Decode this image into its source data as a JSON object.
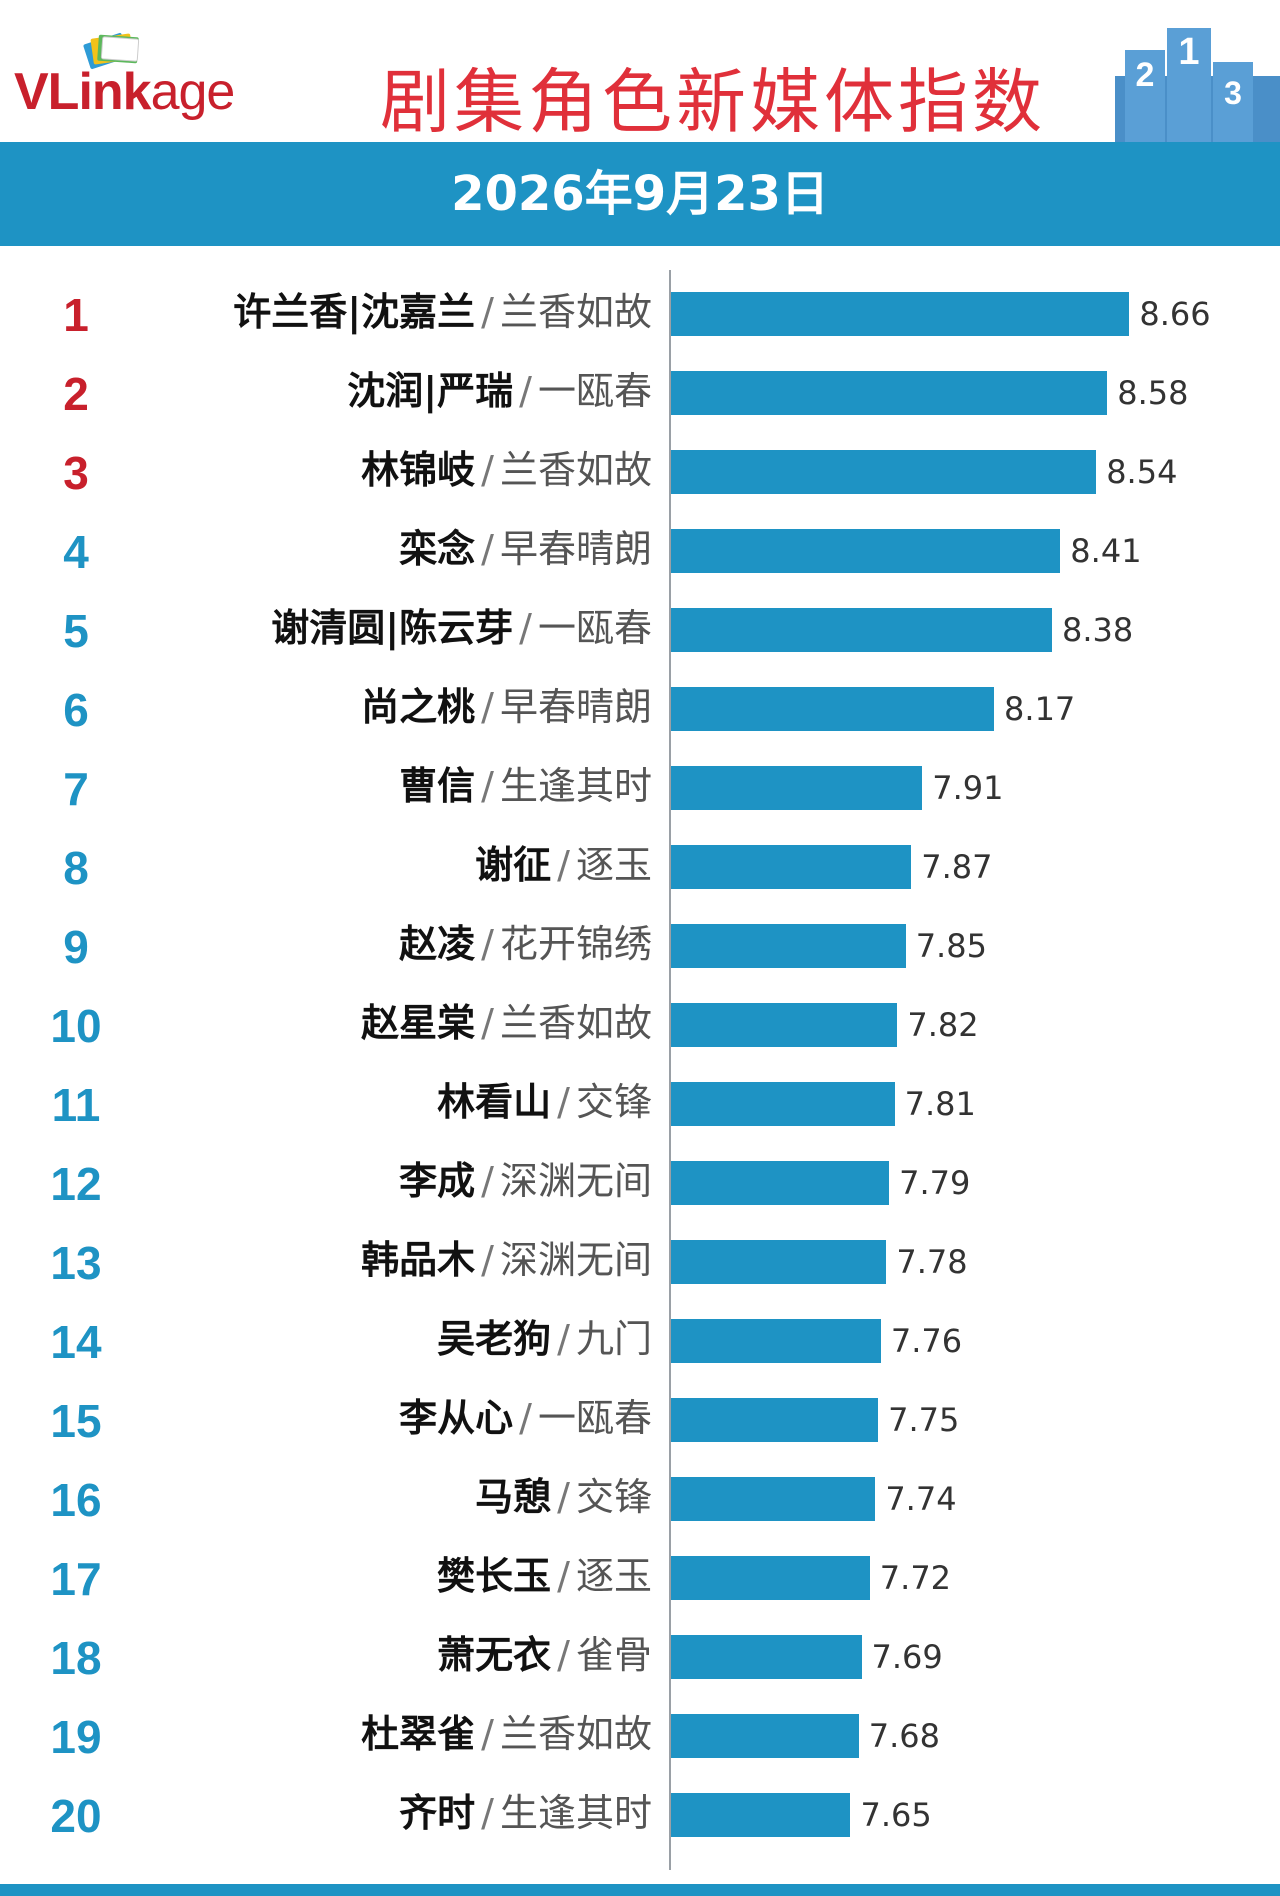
{
  "header": {
    "logo_text": {
      "part1": "VL",
      "part2": "ink",
      "part3": "age"
    },
    "title": "剧集角色新媒体指数",
    "podium": {
      "first": "1",
      "second": "2",
      "third": "3"
    }
  },
  "date": "2026年9月23日",
  "colors": {
    "bar": "#1e93c4",
    "rank_top3": "#c8202c",
    "rank_other": "#1e93c4",
    "title": "#e0303a"
  },
  "chart_data": {
    "type": "bar",
    "orientation": "horizontal",
    "title": "剧集角色新媒体指数",
    "subtitle": "2026年9月23日",
    "xlim": [
      7.0,
      9.0
    ],
    "rows": [
      {
        "rank": "1",
        "name": "许兰香|沈嘉兰",
        "drama": "兰香如故",
        "value": 8.66
      },
      {
        "rank": "2",
        "name": "沈润|严瑞",
        "drama": "一瓯春",
        "value": 8.58
      },
      {
        "rank": "3",
        "name": "林锦岐",
        "drama": "兰香如故",
        "value": 8.54
      },
      {
        "rank": "4",
        "name": "栾念",
        "drama": "早春晴朗",
        "value": 8.41
      },
      {
        "rank": "5",
        "name": "谢清圆|陈云芽",
        "drama": "一瓯春",
        "value": 8.38
      },
      {
        "rank": "6",
        "name": "尚之桃",
        "drama": "早春晴朗",
        "value": 8.17
      },
      {
        "rank": "7",
        "name": "曹信",
        "drama": "生逢其时",
        "value": 7.91
      },
      {
        "rank": "8",
        "name": "谢征",
        "drama": "逐玉",
        "value": 7.87
      },
      {
        "rank": "9",
        "name": "赵凌",
        "drama": "花开锦绣",
        "value": 7.85
      },
      {
        "rank": "10",
        "name": "赵星棠",
        "drama": "兰香如故",
        "value": 7.82
      },
      {
        "rank": "11",
        "name": "林看山",
        "drama": "交锋",
        "value": 7.81
      },
      {
        "rank": "12",
        "name": "李成",
        "drama": "深渊无间",
        "value": 7.79
      },
      {
        "rank": "13",
        "name": "韩品木",
        "drama": "深渊无间",
        "value": 7.78
      },
      {
        "rank": "14",
        "name": "吴老狗",
        "drama": "九门",
        "value": 7.76
      },
      {
        "rank": "15",
        "name": "李从心",
        "drama": "一瓯春",
        "value": 7.75
      },
      {
        "rank": "16",
        "name": "马憩",
        "drama": "交锋",
        "value": 7.74
      },
      {
        "rank": "17",
        "name": "樊长玉",
        "drama": "逐玉",
        "value": 7.72
      },
      {
        "rank": "18",
        "name": "萧无衣",
        "drama": "雀骨",
        "value": 7.69
      },
      {
        "rank": "19",
        "name": "杜翠雀",
        "drama": "兰香如故",
        "value": 7.68
      },
      {
        "rank": "20",
        "name": "齐时",
        "drama": "生逢其时",
        "value": 7.65
      }
    ],
    "separator": "/"
  }
}
